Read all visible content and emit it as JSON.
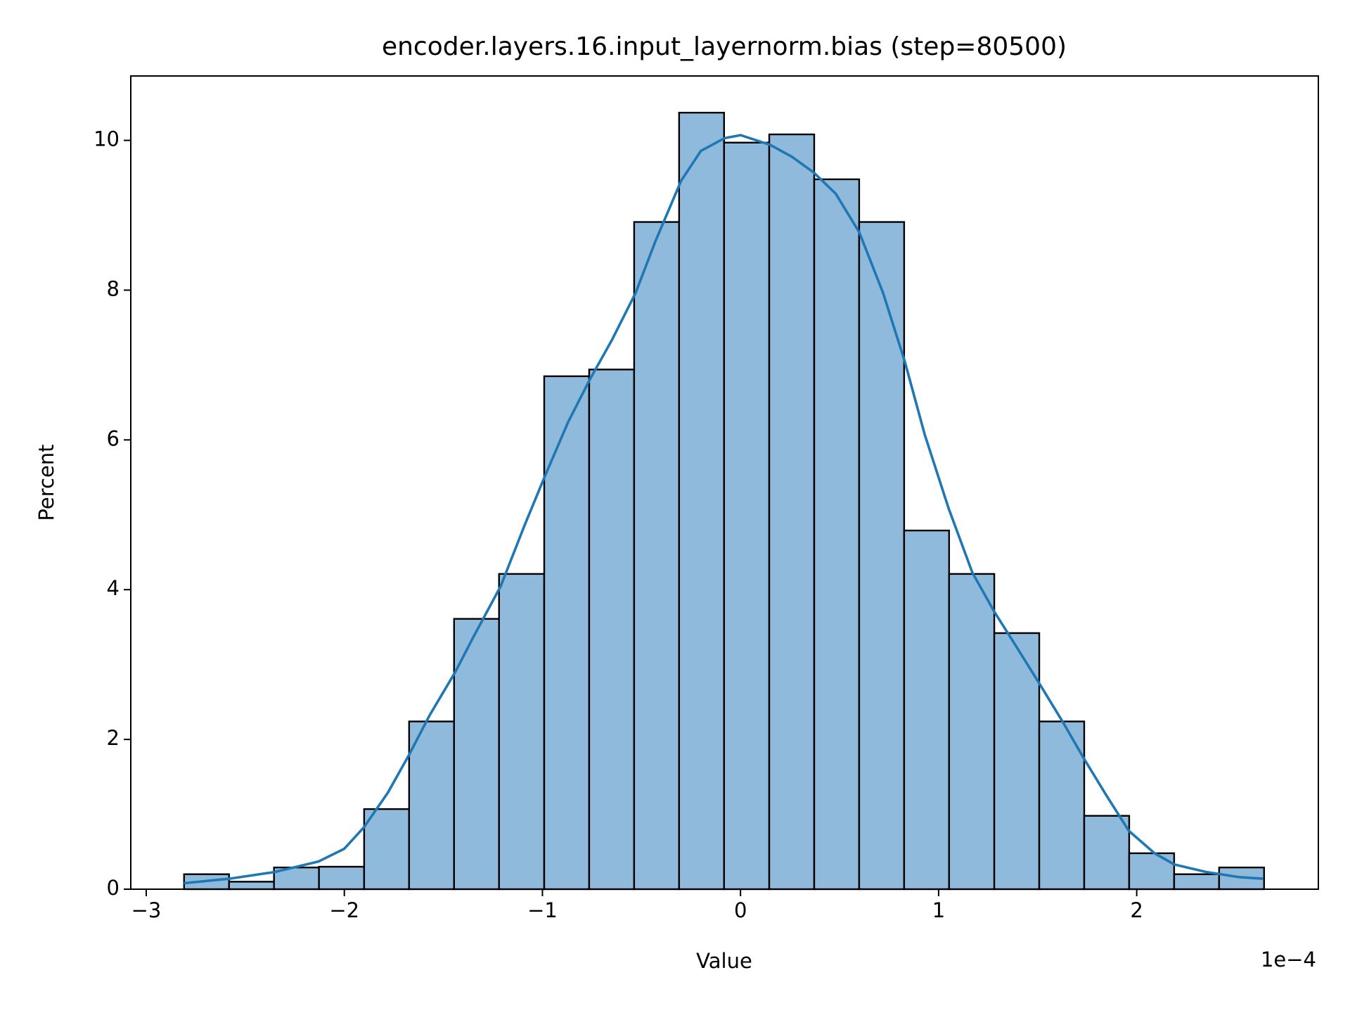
{
  "chart_data": {
    "type": "histogram",
    "title": "encoder.layers.16.input_layernorm.bias (step=80500)",
    "xlabel": "Value",
    "ylabel": "Percent",
    "x_offset_label": "1e−4",
    "bins": [
      -2.809,
      -2.582,
      -2.355,
      -2.128,
      -1.9,
      -1.673,
      -1.446,
      -1.219,
      -0.991,
      -0.764,
      -0.537,
      -0.31,
      -0.083,
      0.145,
      0.372,
      0.599,
      0.826,
      1.053,
      1.281,
      1.508,
      1.735,
      1.962,
      2.189,
      2.416,
      2.643
    ],
    "values": [
      0.2,
      0.1,
      0.29,
      0.3,
      1.07,
      2.24,
      3.61,
      4.21,
      6.85,
      6.94,
      8.91,
      10.37,
      9.97,
      10.08,
      9.48,
      8.91,
      4.79,
      4.21,
      3.42,
      2.24,
      0.98,
      0.48,
      0.2,
      0.29
    ],
    "color": "#8fbadc",
    "edgecolor": "#000000",
    "kde": {
      "color": "#1f77b4",
      "x": [
        -2.81,
        -2.58,
        -2.35,
        -2.13,
        -2.0,
        -1.9,
        -1.78,
        -1.67,
        -1.57,
        -1.44,
        -1.35,
        -1.21,
        -1.09,
        -0.99,
        -0.87,
        -0.76,
        -0.65,
        -0.53,
        -0.43,
        -0.3,
        -0.2,
        -0.08,
        0.0,
        0.15,
        0.26,
        0.37,
        0.48,
        0.6,
        0.72,
        0.83,
        0.93,
        1.05,
        1.17,
        1.28,
        1.39,
        1.51,
        1.63,
        1.73,
        1.85,
        1.96,
        2.09,
        2.19,
        2.35,
        2.52,
        2.64
      ],
      "values": [
        0.08,
        0.14,
        0.23,
        0.37,
        0.54,
        0.83,
        1.29,
        1.81,
        2.32,
        2.9,
        3.36,
        4.05,
        4.86,
        5.5,
        6.24,
        6.81,
        7.33,
        7.96,
        8.65,
        9.46,
        9.86,
        10.03,
        10.07,
        9.94,
        9.78,
        9.57,
        9.29,
        8.77,
        7.96,
        7.04,
        6.07,
        5.09,
        4.23,
        3.71,
        3.25,
        2.74,
        2.22,
        1.76,
        1.24,
        0.78,
        0.48,
        0.33,
        0.23,
        0.16,
        0.14
      ]
    },
    "xlim": [
      -3.078,
      2.917
    ],
    "ylim": [
      0,
      10.86
    ],
    "xticks": [
      {
        "value": -3,
        "label": "−3"
      },
      {
        "value": -2,
        "label": "−2"
      },
      {
        "value": -1,
        "label": "−1"
      },
      0,
      1,
      2
    ],
    "yticks": [
      0,
      2,
      4,
      6,
      8,
      10
    ]
  }
}
